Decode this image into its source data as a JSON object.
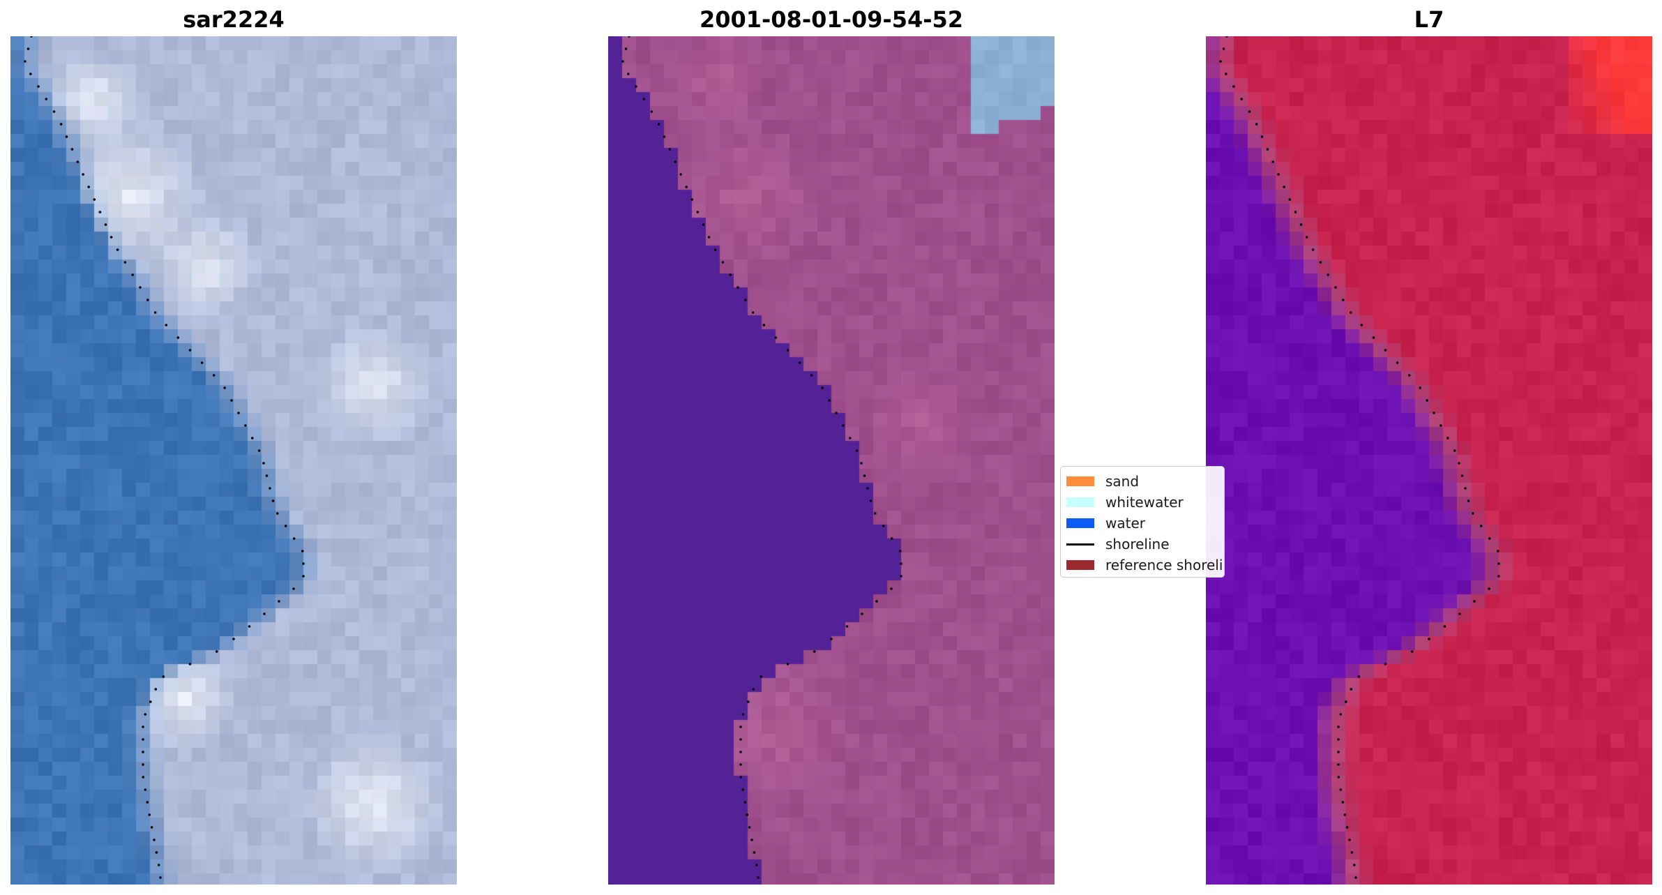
{
  "panels": [
    {
      "title": "sar2224",
      "image": "rgb-satellite",
      "colors": {
        "water": "#3d74b6",
        "land": "#aebad8",
        "whitewater": "#f3f5fa"
      }
    },
    {
      "title": "2001-08-01-09-54-52",
      "image": "classification-overlay",
      "colors": {
        "water": "#542297",
        "land": "#9e4f8c",
        "sand_light": "#b86498",
        "sky_patch": "#8bb0d3"
      }
    },
    {
      "title": "L7",
      "image": "water-index",
      "colors": {
        "water": "#6c0fb0",
        "land": "#c8234e",
        "edge": "#b0447a",
        "hot": "#ff3a3a"
      }
    }
  ],
  "legend": {
    "items": [
      {
        "label": "sand",
        "color": "#ff8c3a",
        "kind": "patch"
      },
      {
        "label": "whitewater",
        "color": "#c8ffff",
        "kind": "patch"
      },
      {
        "label": "water",
        "color": "#0a5cf5",
        "kind": "patch"
      },
      {
        "label": "shoreline",
        "color": "#000000",
        "kind": "line"
      },
      {
        "label": "reference shoreline",
        "color": "#9b2a2f",
        "kind": "patch"
      }
    ]
  }
}
